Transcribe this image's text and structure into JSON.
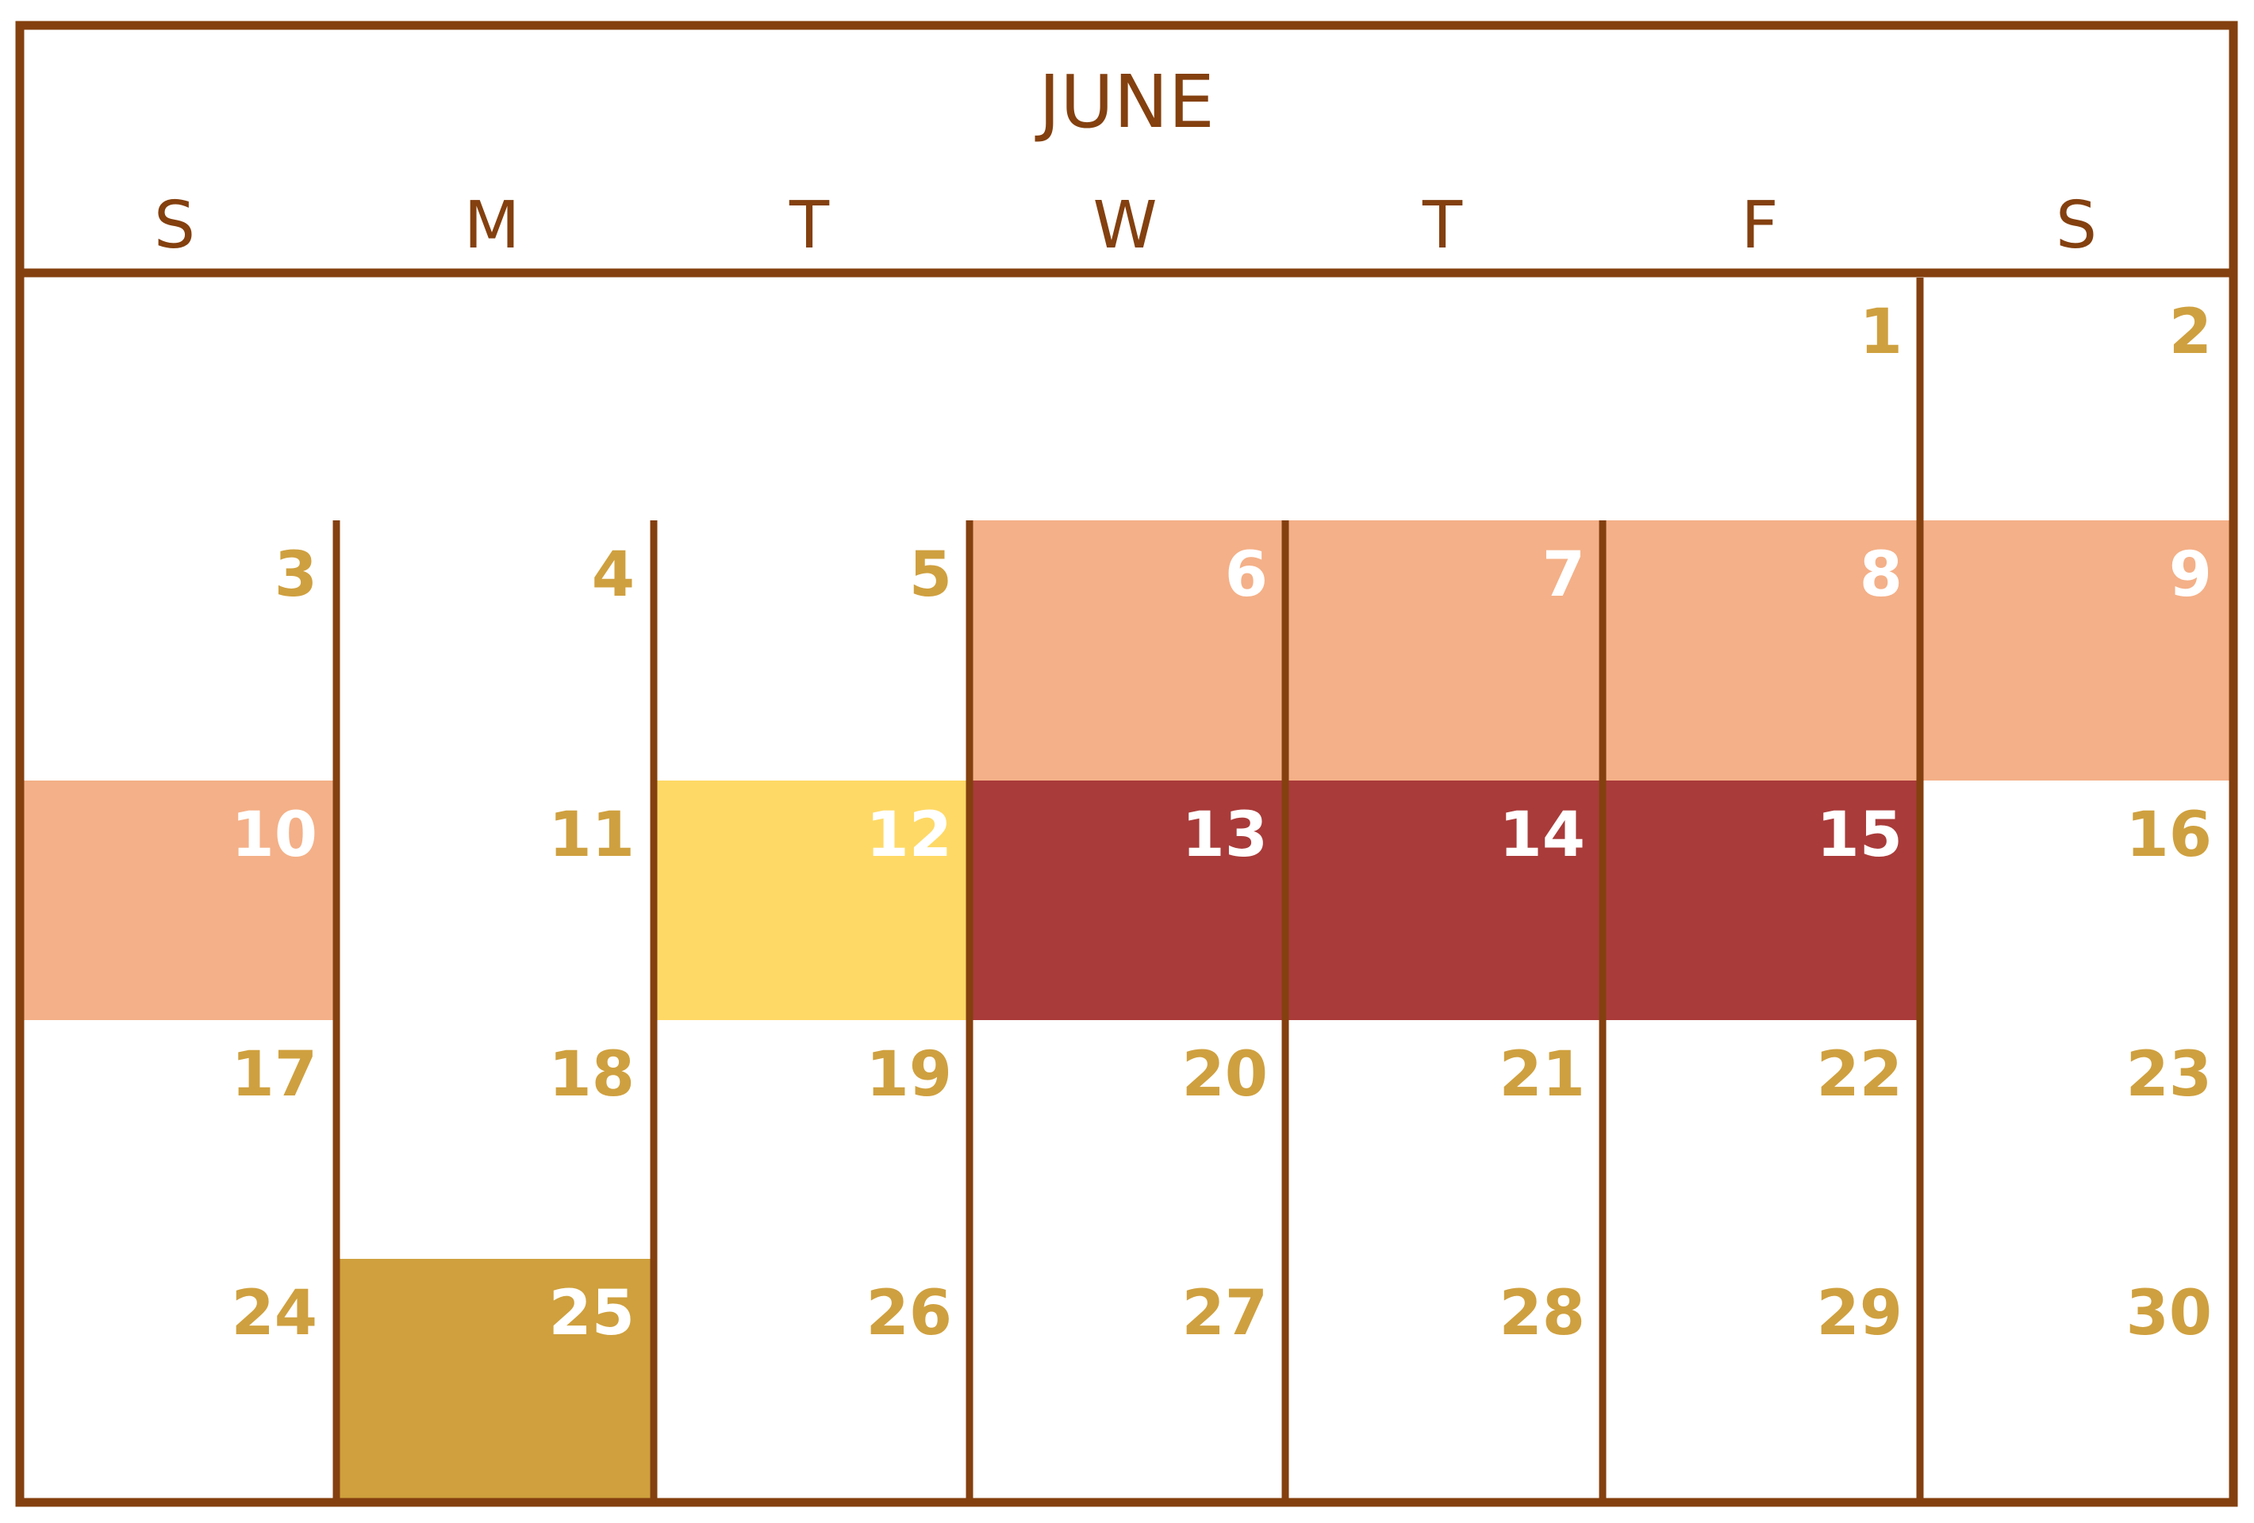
{
  "month": "JUNE",
  "weekday_labels": [
    "S",
    "M",
    "T",
    "W",
    "T",
    "F",
    "S"
  ],
  "colors": {
    "border": "#84400f",
    "header_text": "#84400f",
    "day_text": "#cfa03f",
    "day_text_on_fill": "#ffffff",
    "fill_salmon": "#f4b088",
    "fill_yellow": "#fed966",
    "fill_red": "#a93b3a",
    "fill_gold": "#cfa03d"
  },
  "weeks": [
    [
      null,
      null,
      null,
      null,
      null,
      "1",
      "2"
    ],
    [
      "3",
      "4",
      "5",
      "6",
      "7",
      "8",
      "9"
    ],
    [
      "10",
      "11",
      "12",
      "13",
      "14",
      "15",
      "16"
    ],
    [
      "17",
      "18",
      "19",
      "20",
      "21",
      "22",
      "23"
    ],
    [
      "24",
      "25",
      "26",
      "27",
      "28",
      "29",
      "30"
    ]
  ],
  "highlights": [
    {
      "day": "6",
      "fill": "salmon"
    },
    {
      "day": "7",
      "fill": "salmon"
    },
    {
      "day": "8",
      "fill": "salmon"
    },
    {
      "day": "9",
      "fill": "salmon"
    },
    {
      "day": "10",
      "fill": "salmon"
    },
    {
      "day": "12",
      "fill": "yellow"
    },
    {
      "day": "13",
      "fill": "red"
    },
    {
      "day": "14",
      "fill": "red"
    },
    {
      "day": "15",
      "fill": "red"
    },
    {
      "day": "25",
      "fill": "gold"
    }
  ]
}
